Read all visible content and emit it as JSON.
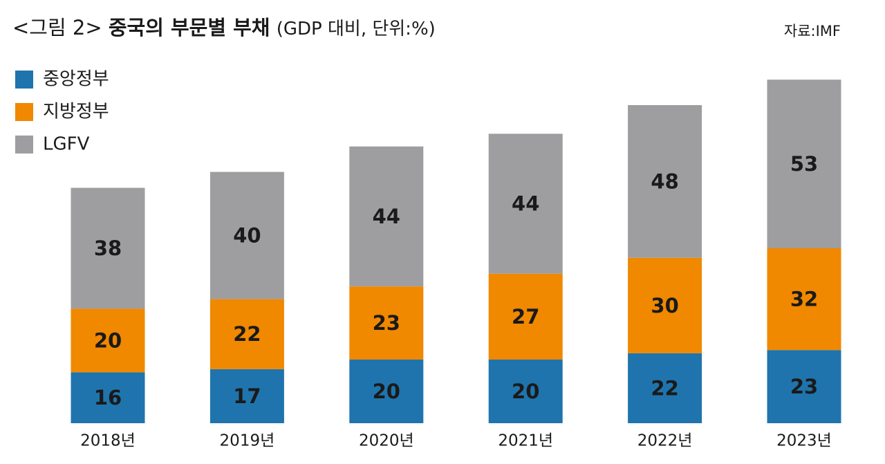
{
  "chart_data": {
    "type": "stacked_bar",
    "figure_label": "<그림 2>",
    "title": "중국의 부문별 부채",
    "subtitle": "(GDP 대비, 단위:%)",
    "source": "자료:IMF",
    "categories": [
      "2018년",
      "2019년",
      "2020년",
      "2021년",
      "2022년",
      "2023년"
    ],
    "series": [
      {
        "name": "중앙정부",
        "color": "#1f74ad",
        "values": [
          16,
          17,
          20,
          20,
          22,
          23
        ]
      },
      {
        "name": "지방정부",
        "color": "#f08800",
        "values": [
          20,
          22,
          23,
          27,
          30,
          32
        ]
      },
      {
        "name": "LGFV",
        "color": "#9e9ea0",
        "values": [
          38,
          40,
          44,
          44,
          48,
          53
        ]
      }
    ],
    "legend": "top-left"
  }
}
